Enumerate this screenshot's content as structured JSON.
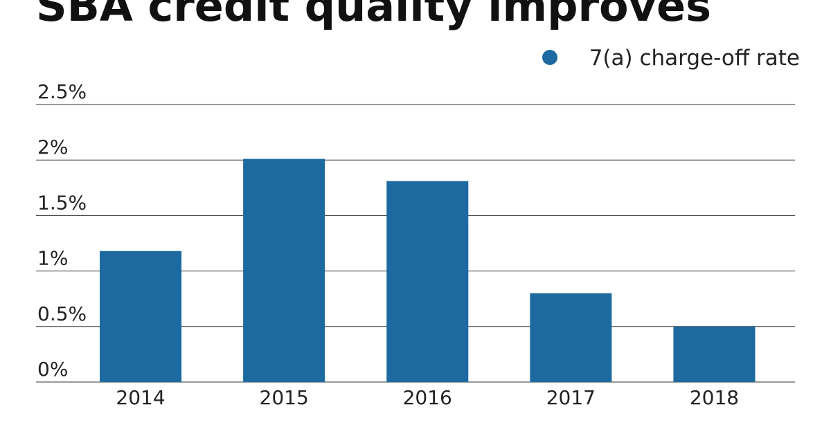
{
  "chart_data": {
    "type": "bar",
    "title": "SBA credit quality improves",
    "categories": [
      "2014",
      "2015",
      "2016",
      "2017",
      "2018"
    ],
    "series": [
      {
        "name": "7(a) charge-off rate",
        "color": "#1c6aa0",
        "values": [
          1.18,
          2.01,
          1.81,
          0.8,
          0.5
        ]
      }
    ],
    "ylim": [
      0,
      2.5
    ],
    "yticks": [
      {
        "value": 0,
        "label": "0%"
      },
      {
        "value": 0.5,
        "label": "0.5%"
      },
      {
        "value": 1,
        "label": "1%"
      },
      {
        "value": 1.5,
        "label": "1.5%"
      },
      {
        "value": 2,
        "label": "2%"
      },
      {
        "value": 2.5,
        "label": "2.5%"
      }
    ],
    "grid": true,
    "legend": "top-right"
  }
}
